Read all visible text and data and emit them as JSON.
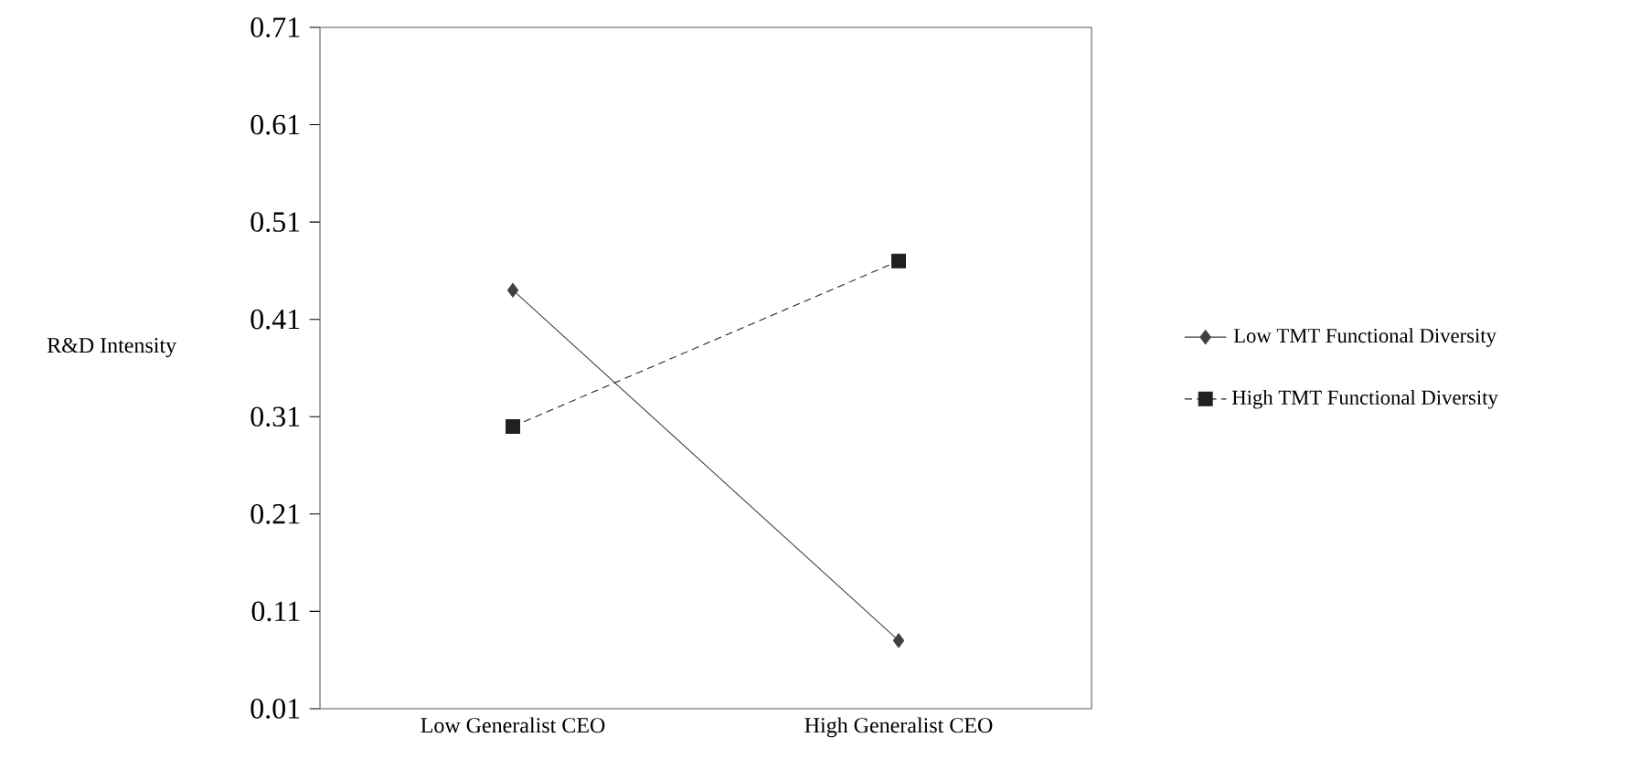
{
  "chart_data": {
    "type": "line",
    "ylabel": "R&D Intensity",
    "categories": [
      "Low Generalist CEO",
      "High Generalist CEO"
    ],
    "series": [
      {
        "name": "Low TMT Functional Diversity",
        "color": "#404040",
        "values": [
          0.44,
          0.08
        ],
        "marker": "diamond",
        "line_style": "solid"
      },
      {
        "name": "High TMT Functional Diversity",
        "color": "#202020",
        "values": [
          0.3,
          0.47
        ],
        "marker": "square",
        "line_style": "dashed"
      }
    ],
    "ylim": [
      0.01,
      0.71
    ],
    "yticks": [
      0.01,
      0.11,
      0.21,
      0.31,
      0.41,
      0.51,
      0.61,
      0.71
    ],
    "grid": false,
    "legend": "right"
  }
}
